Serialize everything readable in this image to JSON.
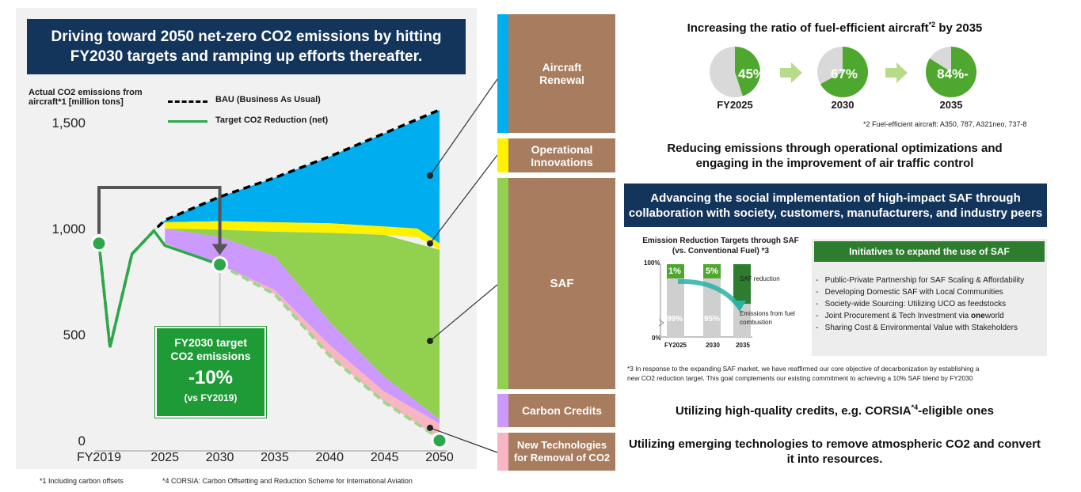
{
  "left": {
    "title_line1": "Driving toward 2050 net-zero CO2 emissions by hitting",
    "title_line2": "FY2030 targets and ramping up efforts thereafter.",
    "ylabel_line1": "Actual CO2 emissions from",
    "ylabel_line2": "aircraft*1 [million tons]",
    "legend_bau": "BAU (Business As Usual)",
    "legend_target": "Target CO2 Reduction (net)",
    "target_box": {
      "line1": "FY2030 target",
      "line2": "CO2 emissions",
      "value": "-10%",
      "note": "(vs  FY2019)"
    },
    "footnote1": "*1 Including carbon offsets",
    "footnote2": "*4 CORSIA: Carbon Offsetting and Reduction Scheme for International Aviation"
  },
  "chart_data": [
    {
      "type": "area",
      "ylabel": "Actual CO2 emissions from aircraft*1 [million tons]",
      "ylim": [
        0,
        1600
      ],
      "yticks": [
        "0",
        "500",
        "1,000",
        "1,500"
      ],
      "xticks": [
        "FY2019",
        "2025",
        "2030",
        "2035",
        "2040",
        "2045",
        "2050"
      ],
      "colors": {
        "aircraft_renewal": "#00aeef",
        "operational_innovations": "#fff200",
        "saf": "#92d050",
        "carbon_credits": "#cc99ff",
        "new_technologies": "#f7b6c2",
        "target_line": "#2ca84a",
        "bau_line": "#000000"
      },
      "series": [
        {
          "name": "BAU (Business As Usual)",
          "x": [
            2019,
            2020,
            2022,
            2024,
            2025,
            2030,
            2035,
            2040,
            2045,
            2050
          ],
          "values": [
            930,
            440,
            880,
            990,
            1040,
            1150,
            1240,
            1340,
            1450,
            1560
          ]
        },
        {
          "name": "Target CO2 Reduction (net)",
          "x": [
            2019,
            2020,
            2022,
            2024,
            2025,
            2030
          ],
          "values": [
            930,
            440,
            880,
            990,
            920,
            830
          ]
        }
      ],
      "marked_points": [
        {
          "x": 2019,
          "y": 930
        },
        {
          "x": 2030,
          "y": 830
        },
        {
          "x": 2050,
          "y": 0
        }
      ],
      "wedges": [
        {
          "name": "Aircraft Renewal",
          "x": [
            2024,
            2025,
            2030,
            2035,
            2040,
            2045,
            2048,
            2050
          ],
          "lower": [
            990,
            1030,
            1035,
            1030,
            1025,
            1010,
            1000,
            930
          ],
          "upper": [
            990,
            1040,
            1150,
            1240,
            1340,
            1450,
            1510,
            1560
          ]
        },
        {
          "name": "Operational Innovations",
          "x": [
            2025,
            2030,
            2035,
            2040,
            2045,
            2048,
            2050
          ],
          "lower": [
            1000,
            995,
            985,
            980,
            970,
            960,
            900
          ],
          "upper": [
            1030,
            1035,
            1030,
            1025,
            1010,
            1000,
            930
          ]
        },
        {
          "name": "SAF",
          "x": [
            2025,
            2030,
            2035,
            2040,
            2045,
            2050
          ],
          "lower": [
            1000,
            960,
            870,
            560,
            300,
            100
          ],
          "upper": [
            1000,
            995,
            985,
            980,
            970,
            900
          ]
        },
        {
          "name": "Carbon Credits",
          "x": [
            2025,
            2030,
            2035,
            2040,
            2045,
            2050
          ],
          "lower": [
            930,
            830,
            710,
            450,
            230,
            80
          ],
          "upper": [
            1000,
            960,
            870,
            560,
            300,
            100
          ]
        },
        {
          "name": "New Technologies for Removal of CO2",
          "x": [
            2030,
            2035,
            2040,
            2045,
            2050
          ],
          "lower": [
            830,
            690,
            400,
            180,
            10
          ],
          "upper": [
            830,
            710,
            450,
            230,
            80
          ]
        }
      ]
    },
    {
      "type": "pie",
      "title": "Increasing the ratio of fuel-efficient aircraft*2 by 2035",
      "charts": [
        {
          "label": "FY2025",
          "value": 45,
          "text": "45%"
        },
        {
          "label": "2030",
          "value": 67,
          "text": "67%"
        },
        {
          "label": "2035",
          "value": 84,
          "text": "84%-"
        }
      ]
    },
    {
      "type": "bar",
      "title": "Emission Reduction Targets through SAF (vs. Conventional Fuel) *3",
      "categories": [
        "FY2025",
        "2030",
        "2035"
      ],
      "series": [
        {
          "name": "SAF reduction",
          "values": [
            1,
            5,
            null
          ]
        },
        {
          "name": "Emissions from fuel combustion",
          "values": [
            99,
            95,
            null
          ]
        }
      ],
      "yticks": [
        "0%",
        "100%"
      ]
    }
  ],
  "right": {
    "aircraft_renewal": {
      "label_line1": "Aircraft",
      "label_line2": "Renewal",
      "headline": "Increasing the ratio of fuel-efficient aircraft",
      "headline_sup": "*2",
      "headline_tail": " by 2035",
      "pies": [
        {
          "pct": "45%",
          "label": "FY2025"
        },
        {
          "pct": "67%",
          "label": "2030"
        },
        {
          "pct": "84%-",
          "label": "2035"
        }
      ],
      "note": "*2 Fuel-efficient aircraft: A350, 787, A321neo, 737-8"
    },
    "operational": {
      "label_line1": "Operational",
      "label_line2": "Innovations",
      "headline_line1": "Reducing emissions through operational optimizations and",
      "headline_line2": "engaging in the improvement of air traffic control"
    },
    "saf": {
      "label": "SAF",
      "banner_line1": "Advancing the social implementation of high-impact SAF through",
      "banner_line2": "collaboration with society, customers, manufacturers, and industry peers",
      "chart_title_line1": "Emission Reduction Targets through SAF",
      "chart_title_line2": "(vs. Conventional Fuel) *3",
      "y100": "100%",
      "y0": "0%",
      "bars": [
        {
          "top": "1%",
          "bottom": "99%",
          "label": "FY2025"
        },
        {
          "top": "5%",
          "bottom": "95%",
          "label": "2030"
        },
        {
          "top": "",
          "bottom": "",
          "label": "2035"
        }
      ],
      "saf_reduction": "SAF reduction",
      "emissions_line1": "Emissions from fuel",
      "emissions_line2": "combustion",
      "initiatives_head": "Initiatives to expand the use of SAF",
      "initiatives": [
        "Public-Private Partnership for SAF Scaling & Affordability",
        "Developing Domestic SAF with Local Communities",
        "Society-wide Sourcing: Utilizing UCO as feedstocks"
      ],
      "init4_pre": "Joint Procurement & Tech Investment via ",
      "init4_bold": "one",
      "init4_post": "world",
      "init5": "Sharing Cost & Environmental Value with Stakeholders",
      "note_line1": "*3 In response to the expanding SAF market, we have reaffirmed our core objective of decarbonization by establishing a",
      "note_line2": "new CO2 reduction target. This goal complements our existing commitment to achieving a 10% SAF blend by FY2030"
    },
    "carbon": {
      "label": "Carbon Credits",
      "headline_pre": "Utilizing high-quality credits, e.g. CORSIA",
      "headline_sup": "*4",
      "headline_post": "-eligible ones"
    },
    "newtech": {
      "label_line1": "New Technologies",
      "label_line2": "for Removal of CO2",
      "headline_line1": "Utilizing emerging technologies to remove atmospheric CO2 and convert",
      "headline_line2": "it into resources."
    }
  }
}
